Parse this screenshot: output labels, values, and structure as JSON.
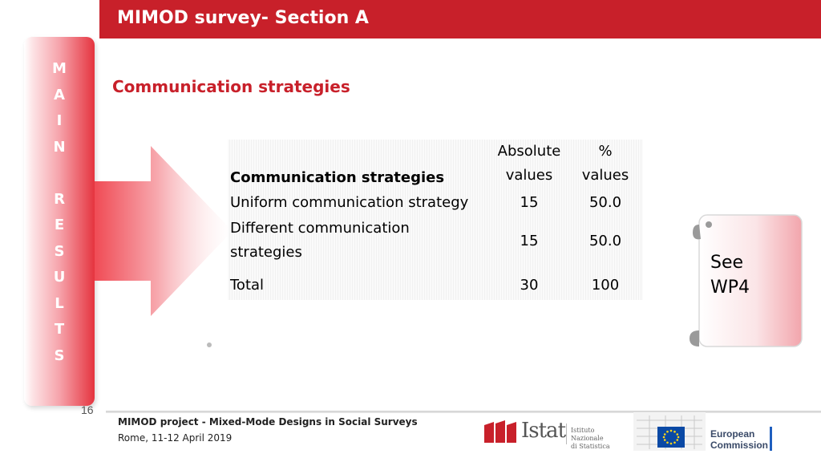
{
  "header": {
    "title": "MIMOD survey- Section A"
  },
  "side_banner": {
    "letters": [
      "M",
      "A",
      "I",
      "N",
      "",
      "R",
      "E",
      "S",
      "U",
      "L",
      "T",
      "S"
    ]
  },
  "section": {
    "heading": "Communication strategies"
  },
  "table": {
    "headers": {
      "col1": "Communication strategies",
      "col2_line1": "Absolute",
      "col2_line2": "values",
      "col3_line1": "%",
      "col3_line2": "values"
    },
    "rows": [
      {
        "label": "Uniform communication strategy",
        "absolute": "15",
        "percent": "50.0"
      },
      {
        "label_line1": "Different communication",
        "label_line2": "strategies",
        "absolute": "15",
        "percent": "50.0"
      }
    ],
    "total": {
      "label": "Total",
      "absolute": "30",
      "percent": "100"
    }
  },
  "callout": {
    "line1": "See",
    "line2": "WP4"
  },
  "footer": {
    "page_number": "16",
    "project": "MIMOD project - Mixed-Mode Designs in Social Surveys",
    "date": "Rome, 11-12 April 2019"
  },
  "logos": {
    "istat_word": "Istat",
    "istat_sub_line1": "Istituto Nazionale",
    "istat_sub_line2": "di Statistica",
    "ec_line1": "European",
    "ec_line2": "Commission"
  },
  "colors": {
    "accent": "#c8202a",
    "eu_blue": "#0a49a5",
    "eu_star": "#ffd617"
  }
}
